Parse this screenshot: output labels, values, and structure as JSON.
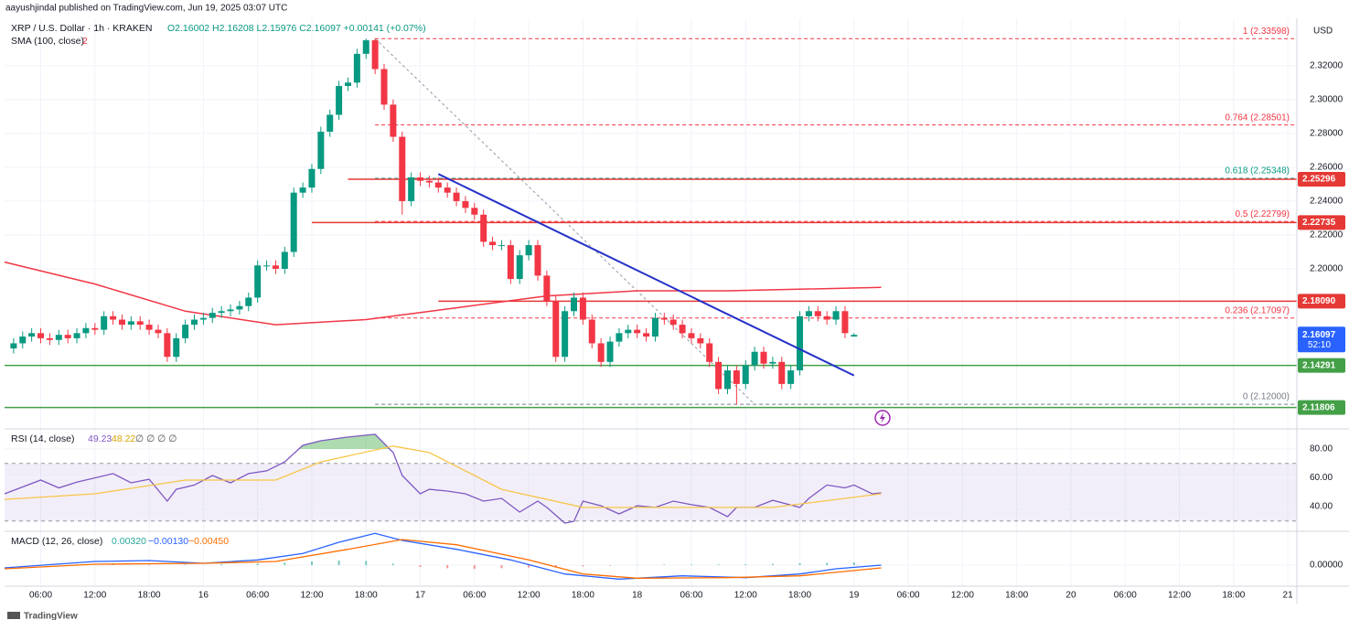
{
  "header": {
    "author_line": "aayushjindal published on TradingView.com, Jun 19, 2025 03:07 UTC",
    "brand": "TradingView"
  },
  "chart_data": [
    {
      "type": "candlestick",
      "title": "XRP / U.S. Dollar · 1h · KRAKEN",
      "ohlc_text": "O2.16002 H2.16208 L2.15976 C2.16097 +0.00141 (+0.07%)",
      "currency": "USD",
      "up_color": "#089981",
      "down_color": "#f23645",
      "x": [
        3,
        4,
        5,
        6,
        7,
        8,
        9,
        10,
        11,
        12,
        13,
        14,
        15,
        16,
        17,
        18,
        19,
        20,
        21,
        22,
        23,
        24,
        25,
        26,
        27,
        28,
        29,
        30,
        31,
        32,
        33,
        34,
        35,
        36,
        37,
        38,
        39,
        40,
        41,
        42,
        43,
        44,
        45,
        46,
        47,
        48,
        49,
        50,
        51,
        52,
        53,
        54,
        55,
        56,
        57,
        58,
        59,
        60,
        61,
        62,
        63,
        64,
        65,
        66,
        67,
        68,
        69,
        70,
        71,
        72,
        73,
        74,
        75,
        76,
        77,
        78,
        79,
        80,
        81,
        82,
        83,
        84,
        85,
        86,
        87,
        88,
        89,
        90,
        91,
        92,
        93,
        94,
        95,
        96
      ],
      "open": [
        2.153,
        2.156,
        2.16,
        2.162,
        2.159,
        2.158,
        2.161,
        2.159,
        2.162,
        2.165,
        2.164,
        2.172,
        2.17,
        2.167,
        2.169,
        2.167,
        2.164,
        2.162,
        2.148,
        2.159,
        2.167,
        2.17,
        2.171,
        2.174,
        2.175,
        2.176,
        2.178,
        2.183,
        2.202,
        2.202,
        2.2,
        2.21,
        2.245,
        2.248,
        2.259,
        2.281,
        2.291,
        2.308,
        2.31,
        2.327,
        2.335,
        2.318,
        2.297,
        2.278,
        2.24,
        2.254,
        2.252,
        2.251,
        2.248,
        2.245,
        2.24,
        2.236,
        2.232,
        2.216,
        2.214,
        2.214,
        2.194,
        2.208,
        2.214,
        2.196,
        2.181,
        2.148,
        2.175,
        2.183,
        2.17,
        2.156,
        2.145,
        2.157,
        2.162,
        2.164,
        2.162,
        2.16,
        2.171,
        2.17,
        2.167,
        2.162,
        2.159,
        2.156,
        2.145,
        2.129,
        2.14,
        2.132,
        2.143,
        2.151,
        2.144,
        2.145,
        2.132,
        2.14,
        2.172,
        2.175,
        2.172,
        2.17,
        2.175,
        2.16
      ],
      "high": [
        2.159,
        2.163,
        2.165,
        2.165,
        2.162,
        2.164,
        2.164,
        2.165,
        2.168,
        2.168,
        2.175,
        2.175,
        2.173,
        2.172,
        2.172,
        2.17,
        2.167,
        2.165,
        2.162,
        2.17,
        2.173,
        2.174,
        2.177,
        2.178,
        2.179,
        2.181,
        2.186,
        2.205,
        2.205,
        2.205,
        2.213,
        2.248,
        2.251,
        2.262,
        2.284,
        2.294,
        2.311,
        2.313,
        2.33,
        2.336,
        2.336,
        2.321,
        2.3,
        2.281,
        2.257,
        2.257,
        2.255,
        2.254,
        2.251,
        2.248,
        2.243,
        2.239,
        2.235,
        2.219,
        2.217,
        2.217,
        2.211,
        2.217,
        2.217,
        2.199,
        2.184,
        2.178,
        2.186,
        2.186,
        2.173,
        2.159,
        2.16,
        2.165,
        2.167,
        2.167,
        2.165,
        2.174,
        2.174,
        2.173,
        2.17,
        2.165,
        2.162,
        2.159,
        2.148,
        2.143,
        2.143,
        2.146,
        2.154,
        2.154,
        2.148,
        2.148,
        2.143,
        2.175,
        2.178,
        2.178,
        2.175,
        2.178,
        2.178,
        2.162
      ],
      "low": [
        2.15,
        2.153,
        2.157,
        2.156,
        2.155,
        2.155,
        2.156,
        2.156,
        2.159,
        2.161,
        2.161,
        2.167,
        2.164,
        2.164,
        2.164,
        2.161,
        2.159,
        2.145,
        2.145,
        2.156,
        2.164,
        2.167,
        2.168,
        2.171,
        2.172,
        2.173,
        2.175,
        2.18,
        2.199,
        2.197,
        2.197,
        2.207,
        2.242,
        2.245,
        2.256,
        2.278,
        2.288,
        2.305,
        2.307,
        2.324,
        2.315,
        2.294,
        2.275,
        2.232,
        2.237,
        2.249,
        2.248,
        2.245,
        2.242,
        2.237,
        2.233,
        2.229,
        2.213,
        2.211,
        2.211,
        2.191,
        2.191,
        2.205,
        2.193,
        2.178,
        2.145,
        2.145,
        2.172,
        2.167,
        2.153,
        2.142,
        2.142,
        2.154,
        2.159,
        2.159,
        2.157,
        2.157,
        2.167,
        2.164,
        2.159,
        2.156,
        2.153,
        2.142,
        2.126,
        2.126,
        2.12,
        2.129,
        2.14,
        2.141,
        2.141,
        2.129,
        2.129,
        2.137,
        2.169,
        2.169,
        2.167,
        2.167,
        2.159,
        2.16
      ],
      "close": [
        2.156,
        2.16,
        2.162,
        2.159,
        2.158,
        2.161,
        2.159,
        2.162,
        2.165,
        2.164,
        2.172,
        2.17,
        2.167,
        2.169,
        2.167,
        2.164,
        2.162,
        2.148,
        2.159,
        2.167,
        2.17,
        2.171,
        2.174,
        2.175,
        2.176,
        2.178,
        2.183,
        2.202,
        2.202,
        2.2,
        2.21,
        2.245,
        2.248,
        2.259,
        2.281,
        2.291,
        2.308,
        2.31,
        2.327,
        2.335,
        2.318,
        2.297,
        2.278,
        2.24,
        2.254,
        2.252,
        2.251,
        2.248,
        2.245,
        2.24,
        2.236,
        2.232,
        2.216,
        2.214,
        2.214,
        2.194,
        2.208,
        2.214,
        2.196,
        2.181,
        2.148,
        2.175,
        2.183,
        2.17,
        2.156,
        2.145,
        2.157,
        2.162,
        2.164,
        2.162,
        2.16,
        2.171,
        2.17,
        2.167,
        2.162,
        2.159,
        2.156,
        2.145,
        2.129,
        2.14,
        2.132,
        2.143,
        2.151,
        2.144,
        2.145,
        2.132,
        2.14,
        2.172,
        2.175,
        2.172,
        2.17,
        2.175,
        2.162,
        2.161
      ],
      "xlim": [
        2,
        145
      ],
      "xticks": [
        {
          "value": 6,
          "label": "06:00"
        },
        {
          "value": 12,
          "label": "12:00"
        },
        {
          "value": 18,
          "label": "18:00"
        },
        {
          "value": 24,
          "label": "16"
        },
        {
          "value": 30,
          "label": "06:00"
        },
        {
          "value": 36,
          "label": "12:00"
        },
        {
          "value": 42,
          "label": "18:00"
        },
        {
          "value": 48,
          "label": "17"
        },
        {
          "value": 54,
          "label": "06:00"
        },
        {
          "value": 60,
          "label": "12:00"
        },
        {
          "value": 66,
          "label": "18:00"
        },
        {
          "value": 72,
          "label": "18"
        },
        {
          "value": 78,
          "label": "06:00"
        },
        {
          "value": 84,
          "label": "12:00"
        },
        {
          "value": 90,
          "label": "18:00"
        },
        {
          "value": 96,
          "label": "19"
        },
        {
          "value": 102,
          "label": "06:00"
        },
        {
          "value": 108,
          "label": "12:00"
        },
        {
          "value": 114,
          "label": "18:00"
        },
        {
          "value": 120,
          "label": "20"
        },
        {
          "value": 126,
          "label": "06:00"
        },
        {
          "value": 132,
          "label": "12:00"
        },
        {
          "value": 138,
          "label": "18:00"
        },
        {
          "value": 144,
          "label": "21"
        }
      ],
      "ylim": [
        2.106,
        2.348
      ],
      "yticks": [
        {
          "value": 2.32,
          "label": "2.32000"
        },
        {
          "value": 2.3,
          "label": "2.30000"
        },
        {
          "value": 2.28,
          "label": "2.28000"
        },
        {
          "value": 2.26,
          "label": "2.26000"
        },
        {
          "value": 2.24,
          "label": "2.24000"
        },
        {
          "value": 2.22,
          "label": "2.22000"
        },
        {
          "value": 2.2,
          "label": "2.20000"
        }
      ],
      "grid": true,
      "sma": {
        "name": "SMA (100, close)",
        "tag": "2",
        "color": "#f23645",
        "x": [
          2,
          12,
          22,
          32,
          42,
          52,
          62,
          72,
          82,
          99
        ],
        "values": [
          2.204,
          2.191,
          2.175,
          2.167,
          2.17,
          2.177,
          2.184,
          2.187,
          2.187,
          2.189
        ]
      },
      "levels": [
        {
          "value": 2.25296,
          "start": 40,
          "color": "#e53935"
        },
        {
          "value": 2.22735,
          "start": 36,
          "color": "#e53935"
        },
        {
          "value": 2.1809,
          "label": "2.18090",
          "start": 50,
          "color": "#e53935"
        },
        {
          "value": 2.14291,
          "start": 2,
          "color": "#43a047"
        },
        {
          "value": 2.11806,
          "start": 2,
          "color": "#43a047"
        }
      ],
      "fibs": [
        {
          "label": "1 (2.33598)",
          "value": 2.33598,
          "color": "#f23645"
        },
        {
          "label": "0.764 (2.28501)",
          "value": 2.28501,
          "color": "#f23645"
        },
        {
          "label": "0.618 (2.25348)",
          "value": 2.25348,
          "color": "#089981"
        },
        {
          "label": "0.5 (2.22799)",
          "value": 2.22799,
          "color": "#f23645"
        },
        {
          "label": "0.236 (2.17097)",
          "value": 2.17097,
          "color": "#f23645"
        },
        {
          "label": "0 (2.12000)",
          "value": 2.12,
          "color": "#787b86"
        }
      ],
      "fib_range": {
        "x": [
          43,
          85
        ]
      },
      "trendline": {
        "x": [
          50,
          96
        ],
        "values": [
          2.256,
          2.137
        ],
        "color": "#2430c8"
      },
      "last_price": {
        "value": 2.16097,
        "countdown": "52:10",
        "color": "#2962ff"
      }
    },
    {
      "type": "line",
      "title": "RSI (14, close)",
      "legend_values": [
        49.23,
        48.22
      ],
      "legend_extra": "∅ ∅ ∅ ∅",
      "ylim": [
        23.5,
        93.3
      ],
      "yticks": [
        {
          "value": 80,
          "label": "80.00"
        },
        {
          "value": 60,
          "label": "60.00"
        },
        {
          "value": 40,
          "label": "40.00"
        }
      ],
      "band": [
        30,
        70
      ],
      "series": [
        {
          "color": "#7e57c2",
          "x": [
            2,
            6,
            8,
            10,
            14,
            16,
            18,
            20,
            21,
            23,
            25,
            27,
            29,
            31,
            33,
            35,
            37,
            40,
            43,
            45,
            46,
            48,
            49,
            51,
            53,
            55,
            57,
            59,
            61,
            62,
            64,
            65,
            66,
            68,
            70,
            72,
            74,
            76,
            78,
            80,
            82,
            83,
            85,
            87,
            90,
            91,
            93,
            95,
            96,
            98,
            99
          ],
          "values": [
            48.9,
            58.4,
            53.0,
            57.0,
            62.9,
            56.5,
            59.0,
            43.8,
            52.0,
            55.0,
            61.6,
            56.5,
            62.9,
            64.8,
            71.0,
            82.5,
            85.7,
            88.3,
            90.2,
            77.5,
            61.6,
            48.9,
            52.0,
            50.8,
            48.9,
            43.8,
            45.7,
            36.2,
            43.8,
            39.4,
            28.6,
            29.8,
            43.8,
            40.6,
            34.9,
            40.6,
            39.4,
            43.8,
            41.3,
            39.4,
            33.0,
            39.4,
            39.4,
            44.4,
            39.4,
            45.7,
            55.0,
            53.0,
            55.0,
            48.9,
            49.5
          ]
        },
        {
          "color": "#f7c548",
          "x": [
            2,
            12,
            22,
            32,
            37,
            45,
            49,
            57,
            66,
            77,
            87,
            99
          ],
          "values": [
            45,
            48.9,
            58.4,
            58.4,
            71,
            82,
            77.5,
            52,
            39.4,
            39.4,
            39.4,
            48.9
          ]
        }
      ]
    },
    {
      "type": "macd",
      "title": "MACD (12, 26, close)",
      "legend_values": [
        0.0032,
        -0.0013,
        -0.0045
      ],
      "legend_value_labels": [
        "0.00320",
        "−0.00130",
        "−0.00450"
      ],
      "ylim": [
        -0.0066,
        0.0108
      ],
      "yticks": [
        {
          "value": 0,
          "label": "0.00000"
        }
      ],
      "histogram": {
        "color": "#26a69a",
        "down_color": "#ef5350",
        "x": [
          10,
          14,
          18,
          22,
          26,
          30,
          33,
          36,
          39,
          42,
          45,
          48,
          51,
          54,
          57,
          60,
          63,
          66,
          69,
          72,
          75,
          78,
          81,
          84,
          87,
          90,
          93,
          96
        ],
        "values": [
          0.0003,
          0.0002,
          0.0001,
          0.0002,
          0.0003,
          0.0005,
          0.0008,
          0.0012,
          0.0015,
          0.0014,
          0.0005,
          -0.0006,
          -0.001,
          -0.0012,
          -0.001,
          -0.0008,
          -0.0006,
          -0.0004,
          -0.0002,
          0.0001,
          0.0002,
          0.0002,
          0.0002,
          0.0003,
          0.0004,
          0.0006,
          0.0008,
          0.0009
        ]
      },
      "series": [
        {
          "color": "#2962ff",
          "x": [
            2,
            12,
            18,
            24,
            30,
            35,
            39,
            43,
            46,
            52,
            58,
            64,
            70,
            77,
            84,
            90,
            94,
            99
          ],
          "values": [
            -0.0009,
            0.0012,
            0.0015,
            0.0006,
            0.0017,
            0.0038,
            0.0075,
            0.0104,
            0.0081,
            0.0052,
            0.0017,
            -0.0029,
            -0.0046,
            -0.0035,
            -0.0041,
            -0.0029,
            -0.0012,
            0
          ]
        },
        {
          "color": "#ff6d00",
          "x": [
            2,
            12,
            24,
            32,
            40,
            46,
            52,
            60,
            66,
            72,
            82,
            90,
            99
          ],
          "values": [
            -0.0012,
            0.0003,
            0.0006,
            0.0012,
            0.0052,
            0.0084,
            0.0067,
            0.0017,
            -0.0029,
            -0.0043,
            -0.0041,
            -0.0035,
            -0.0009
          ]
        }
      ]
    }
  ]
}
